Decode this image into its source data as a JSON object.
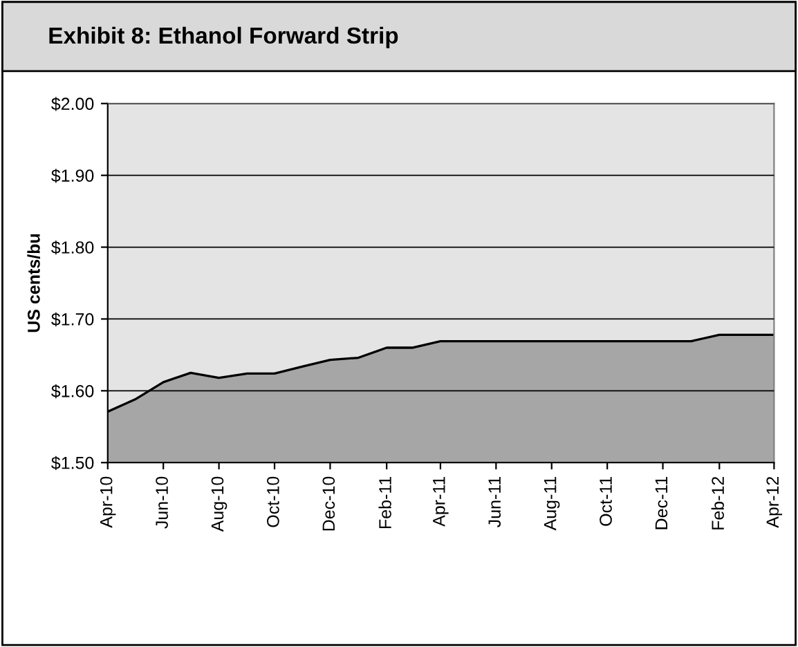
{
  "chart_data": {
    "type": "area",
    "title": "Exhibit 8: Ethanol Forward Strip",
    "ylabel": "US cents/bu",
    "x": [
      "2010-04",
      "2010-05",
      "2010-06",
      "2010-07",
      "2010-08",
      "2010-09",
      "2010-10",
      "2010-11",
      "2010-12",
      "2011-01",
      "2011-02",
      "2011-03",
      "2011-04",
      "2011-05",
      "2011-06",
      "2011-07",
      "2011-08",
      "2011-09",
      "2011-10",
      "2011-11",
      "2011-12",
      "2012-01",
      "2012-02",
      "2012-03",
      "2012-04"
    ],
    "series": [
      {
        "color": "#a6a6a6",
        "values": [
          1.571,
          1.588,
          1.612,
          1.625,
          1.618,
          1.624,
          1.624,
          1.634,
          1.643,
          1.646,
          1.66,
          1.66,
          1.669,
          1.669,
          1.669,
          1.669,
          1.669,
          1.669,
          1.669,
          1.669,
          1.669,
          1.669,
          1.678,
          1.678,
          1.678
        ]
      }
    ],
    "ylim": [
      1.5,
      2.0
    ],
    "yticks": [
      {
        "value": 1.5,
        "label": "$1.50"
      },
      {
        "value": 1.6,
        "label": "$1.60"
      },
      {
        "value": 1.7,
        "label": "$1.70"
      },
      {
        "value": 1.8,
        "label": "$1.80"
      },
      {
        "value": 1.9,
        "label": "$1.90"
      },
      {
        "value": 2.0,
        "label": "$2.00"
      }
    ],
    "xlim": [
      "2010-04",
      "2012-04"
    ],
    "xticks": [
      {
        "value": "2010-04",
        "label": "Apr-10"
      },
      {
        "value": "2010-06",
        "label": "Jun-10"
      },
      {
        "value": "2010-08",
        "label": "Aug-10"
      },
      {
        "value": "2010-10",
        "label": "Oct-10"
      },
      {
        "value": "2010-12",
        "label": "Dec-10"
      },
      {
        "value": "2011-02",
        "label": "Feb-11"
      },
      {
        "value": "2011-04",
        "label": "Apr-11"
      },
      {
        "value": "2011-06",
        "label": "Jun-11"
      },
      {
        "value": "2011-08",
        "label": "Aug-11"
      },
      {
        "value": "2011-10",
        "label": "Oct-11"
      },
      {
        "value": "2011-12",
        "label": "Dec-11"
      },
      {
        "value": "2012-02",
        "label": "Feb-12"
      },
      {
        "value": "2012-04",
        "label": "Apr-12"
      }
    ],
    "grid": "y",
    "legend": false
  }
}
